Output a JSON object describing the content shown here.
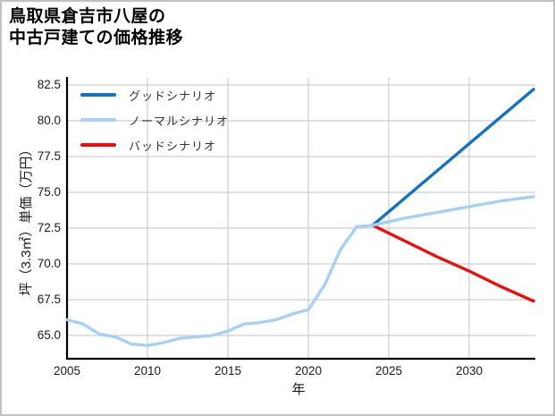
{
  "title": {
    "line1": "鳥取県倉吉市八屋の",
    "line2": "中古戸建ての価格推移"
  },
  "chart_data": {
    "type": "line",
    "title": "鳥取県倉吉市八屋の中古戸建ての価格推移",
    "xlabel": "年",
    "ylabel": "坪（3.3㎡）単価（万円）",
    "x_ticks": [
      2005,
      2010,
      2015,
      2020,
      2025,
      2030
    ],
    "y_ticks": [
      "65.0",
      "67.5",
      "70.0",
      "72.5",
      "75.0",
      "77.5",
      "80.0",
      "82.5"
    ],
    "xlim": [
      2005,
      2034.1
    ],
    "ylim": [
      63.4,
      83.0
    ],
    "grid": true,
    "legend_position": "upper-left",
    "colors": {
      "grid": "#cfcfcf",
      "spine": "#000000",
      "text": "#1a1a1a"
    },
    "series": [
      {
        "name": "グッドシナリオ",
        "color": "#1273c4",
        "x": [
          2024,
          2026,
          2028,
          2030,
          2032,
          2034
        ],
        "values": [
          72.7,
          74.6,
          76.5,
          78.4,
          80.3,
          82.2
        ]
      },
      {
        "name": "ノーマルシナリオ",
        "color": "#a6d1f5",
        "x": [
          2005,
          2006,
          2007,
          2008,
          2009,
          2010,
          2011,
          2012,
          2013,
          2014,
          2015,
          2016,
          2017,
          2018,
          2019,
          2020,
          2021,
          2022,
          2023,
          2024,
          2026,
          2028,
          2030,
          2032,
          2034
        ],
        "values": [
          66.1,
          65.8,
          65.1,
          64.9,
          64.4,
          64.3,
          64.5,
          64.8,
          64.9,
          65.0,
          65.3,
          65.8,
          65.9,
          66.1,
          66.5,
          66.8,
          68.5,
          71.0,
          72.6,
          72.7,
          73.2,
          73.6,
          74.0,
          74.4,
          74.7
        ]
      },
      {
        "name": "バッドシナリオ",
        "color": "#ee0d0d",
        "x": [
          2024,
          2026,
          2028,
          2030,
          2032,
          2034
        ],
        "values": [
          72.7,
          71.6,
          70.5,
          69.5,
          68.4,
          67.4
        ]
      }
    ]
  }
}
